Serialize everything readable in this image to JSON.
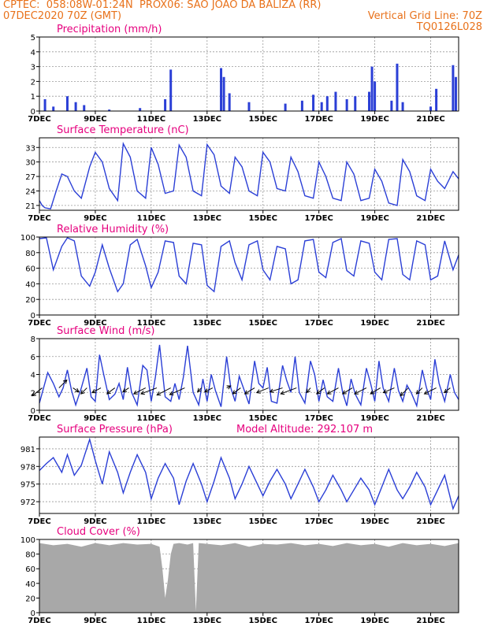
{
  "header": {
    "line1_left": "CPTEC:  058:08W-01:24N  PROX06: SAO JOAO DA BALIZA (RR)",
    "line2_left": "07DEC2020 70Z (GMT)",
    "line2_right": "Vertical Grid Line: 70Z",
    "line3_right": "TQ0126L028"
  },
  "colors": {
    "header": "#e8711a",
    "title": "#e6007e",
    "line": "#2b3fd6",
    "bar": "#2b3fd6",
    "cloud": "#a8a8a8",
    "grid": "#999999"
  },
  "x_ticks": [
    "7DEC",
    "9DEC",
    "11DEC",
    "13DEC",
    "15DEC",
    "17DEC",
    "19DEC",
    "21DEC"
  ],
  "x_tick_days": [
    7,
    9,
    11,
    13,
    15,
    17,
    19,
    21
  ],
  "chart_data": [
    {
      "type": "bar",
      "title": "Precipitation  (mm/h)",
      "ylim": [
        0,
        5
      ],
      "yticks": [
        0,
        1,
        2,
        3,
        4,
        5
      ],
      "x": [
        7.2,
        7.5,
        8.0,
        8.3,
        8.6,
        9.5,
        10.6,
        11.5,
        11.7,
        13.5,
        13.6,
        13.8,
        14.5,
        15.8,
        16.4,
        16.8,
        17.1,
        17.3,
        17.6,
        18.0,
        18.3,
        18.8,
        18.9,
        19.0,
        19.6,
        19.8,
        20.0,
        21.0,
        21.2,
        21.8,
        21.9
      ],
      "values": [
        0.8,
        0.3,
        1.0,
        0.6,
        0.4,
        0.1,
        0.2,
        0.8,
        2.8,
        2.9,
        2.3,
        1.2,
        0.6,
        0.5,
        0.7,
        1.1,
        0.6,
        1.0,
        1.3,
        0.8,
        1.0,
        1.3,
        3.0,
        2.0,
        0.7,
        3.2,
        0.6,
        0.3,
        1.5,
        3.1,
        2.3
      ]
    },
    {
      "type": "line",
      "title": "Surface Temperature (nC)",
      "ylim": [
        20,
        35
      ],
      "yticks": [
        21,
        24,
        27,
        30,
        33
      ],
      "x": [
        7.0,
        7.1,
        7.2,
        7.4,
        7.6,
        7.8,
        8.0,
        8.25,
        8.5,
        8.8,
        9.0,
        9.25,
        9.5,
        9.8,
        10.0,
        10.25,
        10.5,
        10.8,
        11.0,
        11.25,
        11.5,
        11.8,
        12.0,
        12.25,
        12.5,
        12.8,
        13.0,
        13.25,
        13.5,
        13.8,
        14.0,
        14.25,
        14.5,
        14.8,
        15.0,
        15.25,
        15.5,
        15.8,
        16.0,
        16.25,
        16.5,
        16.8,
        17.0,
        17.25,
        17.5,
        17.8,
        18.0,
        18.25,
        18.5,
        18.8,
        19.0,
        19.25,
        19.5,
        19.8,
        20.0,
        20.25,
        20.5,
        20.8,
        21.0,
        21.25,
        21.5,
        21.8,
        22.0
      ],
      "values": [
        22,
        21,
        20.5,
        20.3,
        24,
        27.5,
        27,
        24,
        22.5,
        29,
        32,
        30,
        24.5,
        22,
        33.8,
        31,
        24,
        22.5,
        33,
        29.5,
        23.5,
        24,
        33.5,
        31,
        24,
        23,
        33.6,
        31.5,
        25,
        23.5,
        31,
        29,
        24,
        23,
        32,
        30,
        24.5,
        24,
        31,
        28,
        23,
        22.5,
        30,
        27,
        22.5,
        22,
        30,
        27.5,
        22,
        22.5,
        28.5,
        26,
        21.5,
        21,
        30.5,
        28,
        23,
        22,
        28.5,
        26,
        24.5,
        28,
        26.5
      ]
    },
    {
      "type": "line",
      "title": "Relative Humidity (%)",
      "ylim": [
        0,
        100
      ],
      "yticks": [
        0,
        20,
        40,
        60,
        80,
        100
      ],
      "x": [
        7.0,
        7.25,
        7.5,
        7.8,
        8.0,
        8.25,
        8.5,
        8.8,
        9.0,
        9.25,
        9.5,
        9.8,
        10.0,
        10.25,
        10.5,
        10.8,
        11.0,
        11.25,
        11.5,
        11.8,
        12.0,
        12.25,
        12.5,
        12.8,
        13.0,
        13.25,
        13.5,
        13.8,
        14.0,
        14.25,
        14.5,
        14.8,
        15.0,
        15.25,
        15.5,
        15.8,
        16.0,
        16.25,
        16.5,
        16.8,
        17.0,
        17.25,
        17.5,
        17.8,
        18.0,
        18.25,
        18.5,
        18.8,
        19.0,
        19.25,
        19.5,
        19.8,
        20.0,
        20.25,
        20.5,
        20.8,
        21.0,
        21.25,
        21.5,
        21.8,
        22.0
      ],
      "values": [
        98,
        99,
        58,
        88,
        99,
        95,
        50,
        37,
        55,
        90,
        60,
        30,
        40,
        90,
        97,
        63,
        35,
        55,
        95,
        93,
        50,
        40,
        92,
        90,
        38,
        30,
        88,
        95,
        67,
        45,
        90,
        95,
        58,
        45,
        88,
        85,
        40,
        45,
        95,
        97,
        55,
        48,
        93,
        98,
        57,
        50,
        95,
        92,
        55,
        45,
        97,
        98,
        52,
        45,
        95,
        90,
        45,
        50,
        95,
        58,
        77
      ]
    },
    {
      "type": "line",
      "title": "Surface Wind (m/s)",
      "ylim": [
        0,
        8
      ],
      "yticks": [
        0,
        2,
        4,
        6,
        8
      ],
      "x": [
        7.0,
        7.15,
        7.3,
        7.5,
        7.7,
        7.85,
        8.0,
        8.15,
        8.3,
        8.5,
        8.7,
        8.85,
        9.0,
        9.15,
        9.3,
        9.5,
        9.7,
        9.85,
        10.0,
        10.15,
        10.3,
        10.5,
        10.7,
        10.85,
        11.0,
        11.15,
        11.3,
        11.5,
        11.7,
        11.85,
        12.0,
        12.15,
        12.3,
        12.5,
        12.7,
        12.85,
        13.0,
        13.15,
        13.3,
        13.5,
        13.7,
        13.85,
        14.0,
        14.15,
        14.3,
        14.5,
        14.7,
        14.85,
        15.0,
        15.15,
        15.3,
        15.5,
        15.7,
        15.85,
        16.0,
        16.15,
        16.3,
        16.5,
        16.7,
        16.85,
        17.0,
        17.15,
        17.3,
        17.5,
        17.7,
        17.85,
        18.0,
        18.15,
        18.3,
        18.5,
        18.7,
        18.85,
        19.0,
        19.15,
        19.3,
        19.5,
        19.7,
        19.85,
        20.0,
        20.15,
        20.3,
        20.5,
        20.7,
        20.85,
        21.0,
        21.15,
        21.3,
        21.5,
        21.7,
        21.85,
        22.0
      ],
      "values": [
        0.8,
        2.5,
        4.2,
        3.0,
        1.5,
        2.5,
        4.5,
        2.2,
        0.6,
        2.5,
        4.7,
        1.5,
        1.0,
        6.2,
        4.0,
        1.2,
        1.8,
        3.0,
        1.2,
        4.8,
        2.0,
        0.6,
        5.0,
        4.5,
        1.0,
        3.7,
        7.3,
        1.5,
        1.0,
        3.0,
        1.2,
        3.7,
        7.2,
        2.0,
        0.6,
        3.5,
        1.0,
        4.0,
        2.2,
        0.4,
        6.0,
        2.5,
        1.0,
        3.8,
        2.5,
        0.7,
        5.5,
        3.0,
        2.5,
        4.8,
        1.0,
        0.8,
        5.0,
        3.3,
        2.0,
        6.0,
        2.0,
        0.8,
        5.5,
        4.0,
        1.0,
        3.4,
        1.5,
        1.0,
        4.7,
        2.0,
        0.5,
        3.5,
        1.8,
        0.6,
        4.7,
        3.0,
        1.0,
        5.5,
        2.5,
        1.0,
        4.7,
        2.2,
        1.0,
        2.8,
        2.0,
        0.5,
        4.5,
        2.5,
        1.2,
        5.7,
        3.0,
        1.0,
        4.0,
        2.0,
        1.2
      ],
      "arrows": {
        "x": [
          7.1,
          7.7,
          8.2,
          8.7,
          9.2,
          9.7,
          10.2,
          10.8,
          11.2,
          11.7,
          12.2,
          12.8,
          13.2,
          13.7,
          14.2,
          14.7,
          15.2,
          15.7,
          16.2,
          16.7,
          17.2,
          17.7,
          18.2,
          18.7,
          19.2,
          19.7,
          20.2,
          20.7,
          21.2,
          21.7
        ],
        "u": [
          -2.5,
          2.0,
          1.5,
          -1.5,
          -2.2,
          -2.0,
          -1.5,
          -3.0,
          -4.0,
          -3.5,
          -3.8,
          -1.0,
          -2.0,
          1.0,
          -2.0,
          -2.5,
          -3.0,
          -3.2,
          -4.0,
          -1.0,
          -2.0,
          -2.8,
          -2.5,
          -3.0,
          -2.5,
          -2.8,
          -2.0,
          -1.5,
          -3.0,
          -1.5
        ],
        "v": [
          -2.0,
          2.0,
          -1.0,
          -1.5,
          -1.2,
          -1.5,
          -1.0,
          -1.5,
          -1.5,
          -1.8,
          -1.7,
          -1.0,
          -1.0,
          0.5,
          -1.5,
          -1.5,
          -1.2,
          -1.0,
          -1.5,
          -1.2,
          -1.5,
          -1.5,
          -1.5,
          -1.5,
          -1.5,
          -1.2,
          -2.0,
          -1.5,
          -1.5,
          -1.2
        ]
      }
    },
    {
      "type": "line",
      "title": "Surface Pressure (hPa)",
      "annotation": "Model Altitude: 292.107 m",
      "ylim": [
        970,
        983
      ],
      "yticks": [
        972,
        975,
        978,
        981
      ],
      "x": [
        7.0,
        7.25,
        7.5,
        7.8,
        8.0,
        8.25,
        8.5,
        8.8,
        9.0,
        9.25,
        9.5,
        9.8,
        10.0,
        10.25,
        10.5,
        10.8,
        11.0,
        11.25,
        11.5,
        11.8,
        12.0,
        12.25,
        12.5,
        12.8,
        13.0,
        13.25,
        13.5,
        13.8,
        14.0,
        14.25,
        14.5,
        14.8,
        15.0,
        15.25,
        15.5,
        15.8,
        16.0,
        16.25,
        16.5,
        16.8,
        17.0,
        17.25,
        17.5,
        17.8,
        18.0,
        18.25,
        18.5,
        18.8,
        19.0,
        19.25,
        19.5,
        19.8,
        20.0,
        20.25,
        20.5,
        20.8,
        21.0,
        21.25,
        21.5,
        21.8,
        22.0
      ],
      "values": [
        977.3,
        978.5,
        979.5,
        977.0,
        980.0,
        976.5,
        978.2,
        982.6,
        979.0,
        975.0,
        980.5,
        977.0,
        973.5,
        977.0,
        980.0,
        977.0,
        972.5,
        976.0,
        978.5,
        976.0,
        971.5,
        975.5,
        978.5,
        975.0,
        972.0,
        975.5,
        979.5,
        976.0,
        972.5,
        975.0,
        978.0,
        975.0,
        973.0,
        975.5,
        977.5,
        975.0,
        972.5,
        975.0,
        977.5,
        974.5,
        972.0,
        974.0,
        976.5,
        974.0,
        972.0,
        974.0,
        976.0,
        974.0,
        971.5,
        974.5,
        977.5,
        974.0,
        972.5,
        974.5,
        977.0,
        974.5,
        971.5,
        974.0,
        976.5,
        970.8,
        973.0
      ]
    },
    {
      "type": "area",
      "title": "Cloud Cover (%)",
      "ylim": [
        0,
        100
      ],
      "yticks": [
        0,
        20,
        40,
        60,
        80,
        100
      ],
      "x": [
        7.0,
        7.5,
        8.0,
        8.5,
        9.0,
        9.5,
        10.0,
        10.5,
        11.0,
        11.3,
        11.4,
        11.5,
        11.6,
        11.7,
        11.8,
        12.0,
        12.3,
        12.5,
        12.6,
        12.7,
        13.0,
        13.5,
        14.0,
        14.5,
        15.0,
        15.5,
        16.0,
        16.5,
        17.0,
        17.5,
        18.0,
        18.5,
        19.0,
        19.5,
        20.0,
        20.5,
        21.0,
        21.5,
        22.0
      ],
      "values": [
        95,
        92,
        94,
        90,
        95,
        92,
        95,
        93,
        94,
        90,
        60,
        20,
        45,
        80,
        94,
        95,
        93,
        95,
        2,
        95,
        94,
        92,
        95,
        90,
        94,
        93,
        95,
        92,
        94,
        91,
        95,
        92,
        94,
        90,
        95,
        92,
        94,
        91,
        95
      ]
    }
  ]
}
